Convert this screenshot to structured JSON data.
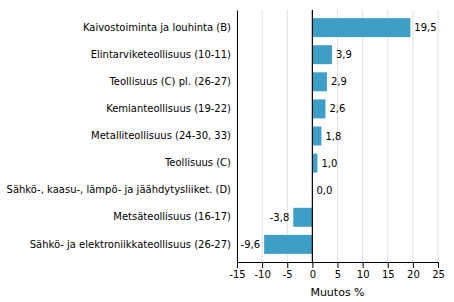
{
  "chart_data": {
    "type": "bar",
    "orientation": "horizontal",
    "categories": [
      "Sähkö- ja elektroniikkateollisuus (26-27)",
      "Metsäteollisuus (16-17)",
      "Sähkö-, kaasu-, lämpö- ja jäähdytysliiket. (D)",
      "Teollisuus (C)",
      "Metalliteollisuus (24-30, 33)",
      "Kemianteollisuus (19-22)",
      "Teollisuus (C) pl. (26-27)",
      "Elintarviketeollisuus (10-11)",
      "Kaivostoiminta  ja louhinta (B)"
    ],
    "values": [
      -9.6,
      -3.8,
      0.0,
      1.0,
      1.8,
      2.6,
      2.9,
      3.9,
      19.5
    ],
    "value_labels": [
      "-9,6",
      "-3,8",
      "0,0",
      "1,0",
      "1,8",
      "2,6",
      "2,9",
      "3,9",
      "19,5"
    ],
    "data_labels": true,
    "color": "#3d9fc8",
    "xlabel": "Muutos %",
    "xlim": [
      -15,
      25
    ],
    "xticks": [
      -15,
      -10,
      -5,
      0,
      5,
      10,
      15,
      20,
      25
    ],
    "grid": true
  }
}
